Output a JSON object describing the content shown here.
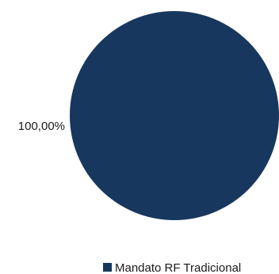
{
  "chart_data": {
    "type": "pie",
    "title": "",
    "categories": [
      "Mandato RF Tradicional"
    ],
    "values": [
      100
    ],
    "data_labels": [
      "100,00%"
    ],
    "colors": [
      "#17375e"
    ],
    "legend_position": "bottom-right"
  }
}
